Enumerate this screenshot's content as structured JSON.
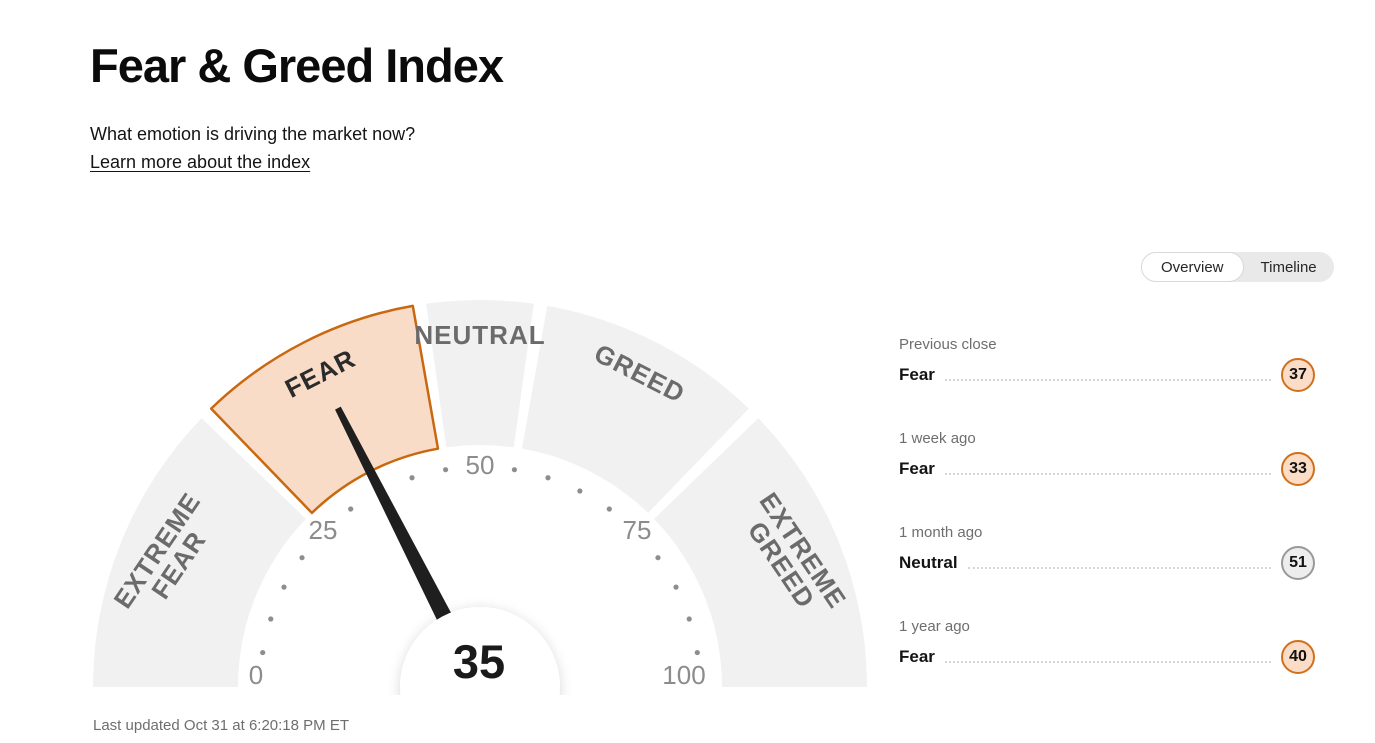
{
  "page": {
    "title": "Fear & Greed Index",
    "subtitle": "What emotion is driving the market now?",
    "learn_more": "Learn more about the index",
    "last_updated": "Last updated Oct 31 at 6:20:18 PM ET"
  },
  "tabs": {
    "overview": "Overview",
    "timeline": "Timeline",
    "selected": "Overview"
  },
  "chart_data": {
    "type": "gauge",
    "title": "Fear & Greed Index",
    "value": 35,
    "value_label": "Fear",
    "min": 0,
    "max": 100,
    "number_ticks": [
      0,
      25,
      50,
      75,
      100
    ],
    "dot_tick_step": 5,
    "segments": [
      {
        "label": "EXTREME FEAR",
        "lines": [
          "EXTREME",
          "FEAR"
        ],
        "from": 0,
        "to": 25,
        "highlighted": false
      },
      {
        "label": "FEAR",
        "lines": [
          "FEAR"
        ],
        "from": 25,
        "to": 45,
        "highlighted": true
      },
      {
        "label": "NEUTRAL",
        "lines": [
          "NEUTRAL"
        ],
        "from": 45,
        "to": 55,
        "highlighted": false
      },
      {
        "label": "GREED",
        "lines": [
          "GREED"
        ],
        "from": 55,
        "to": 75,
        "highlighted": false
      },
      {
        "label": "EXTREME GREED",
        "lines": [
          "EXTREME",
          "GREED"
        ],
        "from": 75,
        "to": 100,
        "highlighted": false
      }
    ],
    "history": [
      {
        "period": "Previous close",
        "label": "Fear",
        "value": 37,
        "tone": "fear"
      },
      {
        "period": "1 week ago",
        "label": "Fear",
        "value": 33,
        "tone": "fear"
      },
      {
        "period": "1 month ago",
        "label": "Neutral",
        "value": 51,
        "tone": "neutral"
      },
      {
        "period": "1 year ago",
        "label": "Fear",
        "value": 40,
        "tone": "fear"
      }
    ],
    "colors": {
      "segment_fill": "#f1f1f1",
      "highlight_fill": "#f9dcc8",
      "highlight_stroke": "#c9680f",
      "needle": "#1f1f1f",
      "hub_fill": "#ffffff",
      "tick_dot": "#8e8e8e",
      "tick_number": "#8c8c8c",
      "segment_label": "#6b6b6b",
      "segment_label_highlight": "#2b2b2b",
      "value_text": "#1a1a1a",
      "badge_fear_fill": "#fbdcc6",
      "badge_fear_border": "#d0701c",
      "badge_neutral_fill": "#ededed",
      "badge_neutral_border": "#999999",
      "toggle_track": "#e9e9e9",
      "toggle_active_bg": "#ffffff",
      "muted_text": "#6e6e6e"
    }
  }
}
